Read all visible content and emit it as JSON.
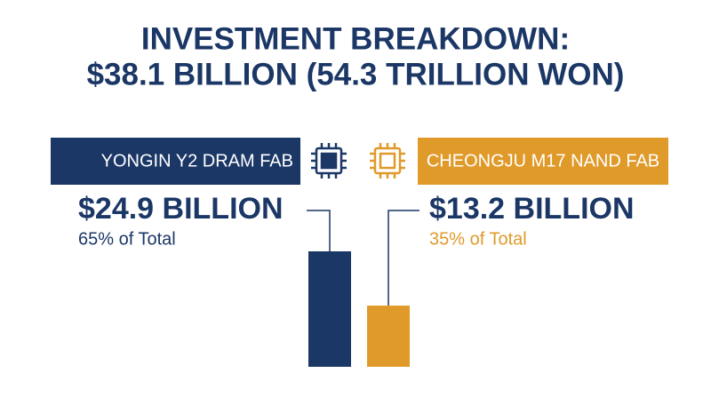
{
  "chart_data": {
    "type": "bar",
    "title": "INVESTMENT BREAKDOWN:",
    "subtitle": "$38.1 BILLION (54.3 TRILLION WON)",
    "categories": [
      "YONGIN Y2 DRAM FAB",
      "CHEONGJU M17 NAND FAB"
    ],
    "values": [
      24.9,
      13.2
    ],
    "value_labels": [
      "$24.9 BILLION",
      "$13.2 BILLION"
    ],
    "shares": [
      65,
      35
    ],
    "share_labels": [
      "65% of Total",
      "35% of Total"
    ],
    "colors": [
      "#1b3766",
      "#e09a2a"
    ]
  }
}
